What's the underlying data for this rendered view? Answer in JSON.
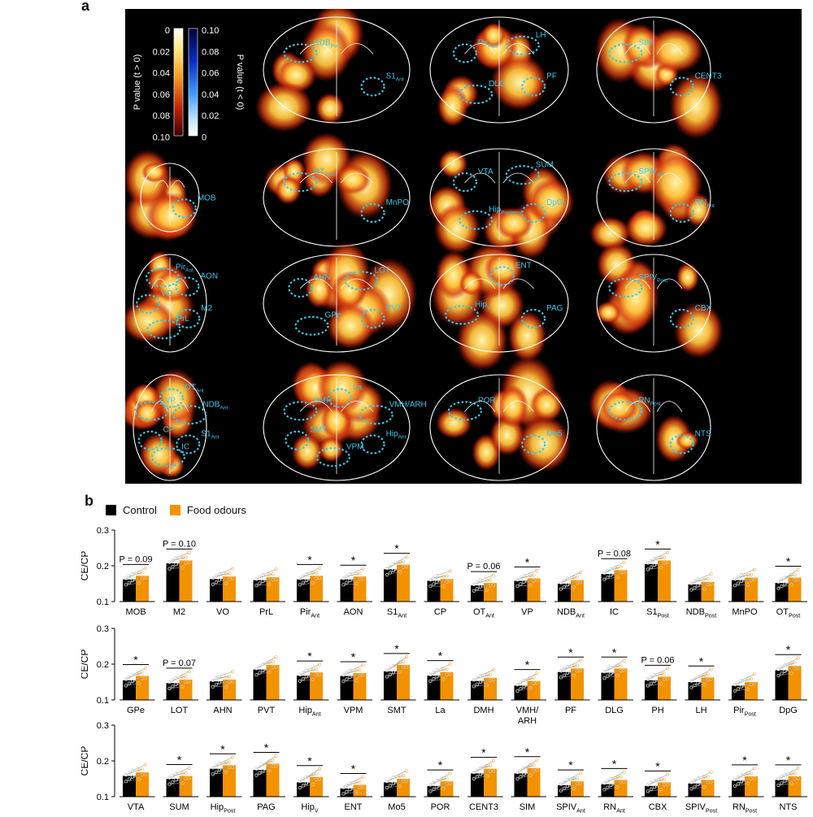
{
  "panel_labels": {
    "a": "a",
    "b": "b"
  },
  "colorbar": {
    "pos_title": "P value (t > 0)",
    "neg_title": "P value (t < 0)",
    "pos_ticks": [
      "0",
      "0.02",
      "0.04",
      "0.06",
      "0.08",
      "0.10"
    ],
    "neg_ticks": [
      "0.10",
      "0.08",
      "0.06",
      "0.04",
      "0.02",
      "0"
    ]
  },
  "colors": {
    "control": "#000000",
    "food": "#f39200",
    "roi": "#39c8e8",
    "hot_hi": "#fff6b0",
    "hot_lo": "#b01010"
  },
  "brain_slices": [
    {
      "row": 0,
      "col": 1,
      "labels": [
        "S1",
        "NDB"
      ],
      "subs": [
        "Ant",
        "Post"
      ]
    },
    {
      "row": 0,
      "col": 2,
      "labels": [
        "PF",
        "DLG",
        "Pir",
        "LH"
      ],
      "subs": [
        "",
        "",
        "Post",
        ""
      ]
    },
    {
      "row": 0,
      "col": 3,
      "labels": [
        "CENT3",
        "SIM"
      ],
      "subs": [
        "",
        ""
      ]
    },
    {
      "row": 1,
      "col": 0,
      "labels": [
        "MOB"
      ],
      "subs": [
        ""
      ]
    },
    {
      "row": 1,
      "col": 1,
      "labels": [
        "MnPO",
        "OT"
      ],
      "subs": [
        "",
        "Post"
      ]
    },
    {
      "row": 1,
      "col": 2,
      "labels": [
        "DpG",
        "Hip",
        "VTA",
        "SUM"
      ],
      "subs": [
        "",
        "Posterior",
        "",
        ""
      ]
    },
    {
      "row": 1,
      "col": 3,
      "labels": [
        "RN",
        "SPIV"
      ],
      "subs": [
        "Ant",
        "Ant"
      ]
    },
    {
      "row": 2,
      "col": 0,
      "labels": [
        "M2",
        "PrL",
        "VO",
        "Pir",
        "AON"
      ],
      "subs": [
        "",
        "",
        "",
        "Ant",
        ""
      ]
    },
    {
      "row": 2,
      "col": 1,
      "labels": [
        "PVT",
        "GPe",
        "AHN",
        "LOT"
      ],
      "subs": [
        "",
        "",
        "",
        ""
      ]
    },
    {
      "row": 2,
      "col": 2,
      "labels": [
        "PAG",
        "Hip",
        "ENT"
      ],
      "subs": [
        "",
        "V",
        ""
      ]
    },
    {
      "row": 2,
      "col": 3,
      "labels": [
        "CBX",
        "SPIV"
      ],
      "subs": [
        "",
        "Post"
      ]
    },
    {
      "row": 3,
      "col": 0,
      "labels": [
        "S1",
        "IC",
        "CP",
        "VP",
        "OT",
        "NDB"
      ],
      "subs": [
        "Ant",
        "",
        "",
        "",
        "Ant",
        "Ant"
      ]
    },
    {
      "row": 3,
      "col": 1,
      "labels": [
        "Hip",
        "VPM",
        "SMT",
        "DMH",
        "La",
        "VMH/ARH"
      ],
      "subs": [
        "Ant",
        "",
        "",
        "",
        "",
        ""
      ]
    },
    {
      "row": 3,
      "col": 2,
      "labels": [
        "Mo5",
        "POR"
      ],
      "subs": [
        "",
        ""
      ]
    },
    {
      "row": 3,
      "col": 3,
      "labels": [
        "NTS",
        "RN"
      ],
      "subs": [
        "",
        "Post"
      ]
    }
  ],
  "chart_data": {
    "type": "bar",
    "ylabel": "CE/CP",
    "ylim": [
      0.1,
      0.3
    ],
    "yticks": [
      "0.1",
      "0.2",
      "0.3"
    ],
    "legend": [
      "Control",
      "Food odours"
    ],
    "rows": [
      {
        "regions": [
          {
            "name": "MOB",
            "sub": "",
            "control": 0.162,
            "food": 0.172,
            "sig": "P = 0.09"
          },
          {
            "name": "M2",
            "sub": "",
            "control": 0.207,
            "food": 0.215,
            "sig": "P = 0.10"
          },
          {
            "name": "VO",
            "sub": "",
            "control": 0.163,
            "food": 0.17,
            "sig": ""
          },
          {
            "name": "PrL",
            "sub": "",
            "control": 0.16,
            "food": 0.168,
            "sig": ""
          },
          {
            "name": "Pir",
            "sub": "Ant",
            "control": 0.162,
            "food": 0.172,
            "sig": "*"
          },
          {
            "name": "AON",
            "sub": "",
            "control": 0.162,
            "food": 0.17,
            "sig": "*"
          },
          {
            "name": "S1",
            "sub": "Ant",
            "control": 0.19,
            "food": 0.203,
            "sig": "*"
          },
          {
            "name": "CP",
            "sub": "",
            "control": 0.158,
            "food": 0.163,
            "sig": ""
          },
          {
            "name": "OT",
            "sub": "Ant",
            "control": 0.145,
            "food": 0.152,
            "sig": "P = 0.06"
          },
          {
            "name": "VP",
            "sub": "",
            "control": 0.158,
            "food": 0.165,
            "sig": "*"
          },
          {
            "name": "NDB",
            "sub": "Ant",
            "control": 0.15,
            "food": 0.16,
            "sig": ""
          },
          {
            "name": "IC",
            "sub": "",
            "control": 0.177,
            "food": 0.188,
            "sig": "P = 0.08"
          },
          {
            "name": "S1",
            "sub": "Post",
            "control": 0.205,
            "food": 0.215,
            "sig": "*"
          },
          {
            "name": "NDB",
            "sub": "Post",
            "control": 0.148,
            "food": 0.155,
            "sig": ""
          },
          {
            "name": "MnPO",
            "sub": "",
            "control": 0.16,
            "food": 0.167,
            "sig": ""
          },
          {
            "name": "OT",
            "sub": "Post",
            "control": 0.152,
            "food": 0.167,
            "sig": "*"
          }
        ]
      },
      {
        "regions": [
          {
            "name": "GPe",
            "sub": "",
            "control": 0.155,
            "food": 0.167,
            "sig": "*"
          },
          {
            "name": "LOT",
            "sub": "",
            "control": 0.147,
            "food": 0.157,
            "sig": "P = 0.07"
          },
          {
            "name": "AHN",
            "sub": "",
            "control": 0.152,
            "food": 0.157,
            "sig": ""
          },
          {
            "name": "PVT",
            "sub": "",
            "control": 0.185,
            "food": 0.198,
            "sig": ""
          },
          {
            "name": "Hip",
            "sub": "Ant",
            "control": 0.168,
            "food": 0.177,
            "sig": "*"
          },
          {
            "name": "VPM",
            "sub": "",
            "control": 0.167,
            "food": 0.175,
            "sig": "*"
          },
          {
            "name": "SMT",
            "sub": "",
            "control": 0.18,
            "food": 0.198,
            "sig": "*"
          },
          {
            "name": "La",
            "sub": "",
            "control": 0.168,
            "food": 0.178,
            "sig": "*"
          },
          {
            "name": "DMH",
            "sub": "",
            "control": 0.153,
            "food": 0.162,
            "sig": ""
          },
          {
            "name": "VMH/",
            "sub": "",
            "line2": "ARH",
            "control": 0.14,
            "food": 0.153,
            "sig": "*"
          },
          {
            "name": "PF",
            "sub": "",
            "control": 0.178,
            "food": 0.188,
            "sig": "*"
          },
          {
            "name": "DLG",
            "sub": "",
            "control": 0.176,
            "food": 0.188,
            "sig": "*"
          },
          {
            "name": "PH",
            "sub": "",
            "control": 0.155,
            "food": 0.165,
            "sig": "P = 0.06"
          },
          {
            "name": "LH",
            "sub": "",
            "control": 0.15,
            "food": 0.163,
            "sig": "*"
          },
          {
            "name": "Pir",
            "sub": "Post",
            "control": 0.14,
            "food": 0.15,
            "sig": ""
          },
          {
            "name": "DpG",
            "sub": "",
            "control": 0.183,
            "food": 0.195,
            "sig": "*"
          }
        ]
      },
      {
        "regions": [
          {
            "name": "VTA",
            "sub": "",
            "control": 0.158,
            "food": 0.168,
            "sig": ""
          },
          {
            "name": "SUM",
            "sub": "",
            "control": 0.15,
            "food": 0.158,
            "sig": "*"
          },
          {
            "name": "Hip",
            "sub": "Post",
            "control": 0.178,
            "food": 0.188,
            "sig": "*"
          },
          {
            "name": "PAG",
            "sub": "",
            "control": 0.175,
            "food": 0.192,
            "sig": "*"
          },
          {
            "name": "Hip",
            "sub": "V",
            "control": 0.14,
            "food": 0.155,
            "sig": "*"
          },
          {
            "name": "ENT",
            "sub": "",
            "control": 0.123,
            "food": 0.133,
            "sig": "*"
          },
          {
            "name": "Mo5",
            "sub": "",
            "control": 0.14,
            "food": 0.15,
            "sig": ""
          },
          {
            "name": "POR",
            "sub": "",
            "control": 0.13,
            "food": 0.143,
            "sig": "*"
          },
          {
            "name": "CENT3",
            "sub": "",
            "control": 0.165,
            "food": 0.178,
            "sig": "*"
          },
          {
            "name": "SIM",
            "sub": "",
            "control": 0.165,
            "food": 0.18,
            "sig": "*"
          },
          {
            "name": "SPIV",
            "sub": "Ant",
            "control": 0.132,
            "food": 0.143,
            "sig": "*"
          },
          {
            "name": "RN",
            "sub": "Ant",
            "control": 0.135,
            "food": 0.147,
            "sig": "*"
          },
          {
            "name": "CBX",
            "sub": "",
            "control": 0.13,
            "food": 0.14,
            "sig": "*"
          },
          {
            "name": "SPIV",
            "sub": "Post",
            "control": 0.137,
            "food": 0.147,
            "sig": ""
          },
          {
            "name": "RN",
            "sub": "Post",
            "control": 0.145,
            "food": 0.157,
            "sig": "*"
          },
          {
            "name": "NTS",
            "sub": "",
            "control": 0.147,
            "food": 0.157,
            "sig": "*"
          }
        ]
      }
    ]
  }
}
